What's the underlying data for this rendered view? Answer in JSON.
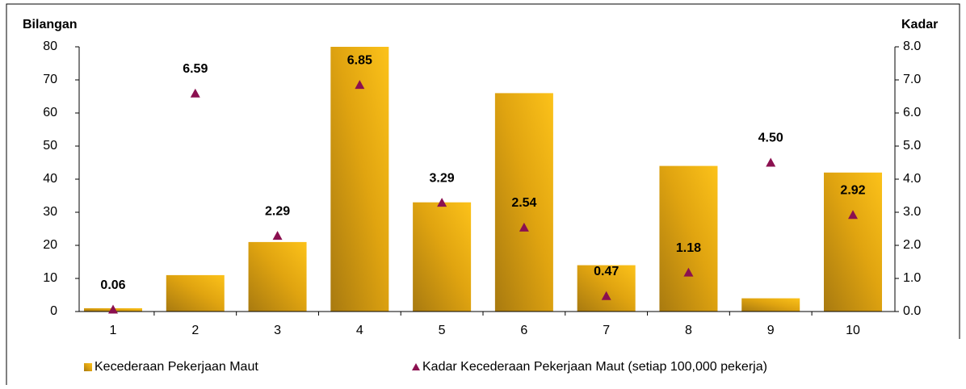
{
  "chart_data": {
    "type": "bar",
    "ylabel": "Bilangan",
    "y2label": "Kadar",
    "categories": [
      "1",
      "2",
      "3",
      "4",
      "5",
      "6",
      "7",
      "8",
      "9",
      "10"
    ],
    "series": [
      {
        "name": "Kecederaan Pekerjaan Maut",
        "type": "bar",
        "color": "#f5b800",
        "values": [
          1,
          11,
          21,
          80,
          33,
          66,
          14,
          44,
          4,
          42
        ]
      },
      {
        "name": "Kadar Kecederaan Pekerjaan Maut (setiap 100,000 pekerja)",
        "type": "scatter",
        "axis": "y2",
        "color": "#8b1050",
        "values": [
          0.06,
          6.59,
          2.29,
          6.85,
          3.29,
          2.54,
          0.47,
          1.18,
          4.5,
          2.92
        ],
        "value_labels": [
          "0.06",
          "6.59",
          "2.29",
          "6.85",
          "3.29",
          "2.54",
          "0.47",
          "1.18",
          "4.50",
          "2.92"
        ]
      }
    ],
    "ylim": [
      0,
      80
    ],
    "yticks": [
      0,
      10,
      20,
      30,
      40,
      50,
      60,
      70,
      80
    ],
    "y2lim": [
      0,
      8
    ],
    "y2ticks": [
      {
        "value": 0,
        "label": "0.0"
      },
      {
        "value": 1,
        "label": "1.0"
      },
      {
        "value": 2,
        "label": "2.0"
      },
      {
        "value": 3,
        "label": "3.0"
      },
      {
        "value": 4,
        "label": "4.0"
      },
      {
        "value": 5,
        "label": "5.0"
      },
      {
        "value": 6,
        "label": "6.0"
      },
      {
        "value": 7,
        "label": "7.0"
      },
      {
        "value": 8,
        "label": "8.0"
      }
    ],
    "grid": false,
    "legend": "bottom"
  }
}
